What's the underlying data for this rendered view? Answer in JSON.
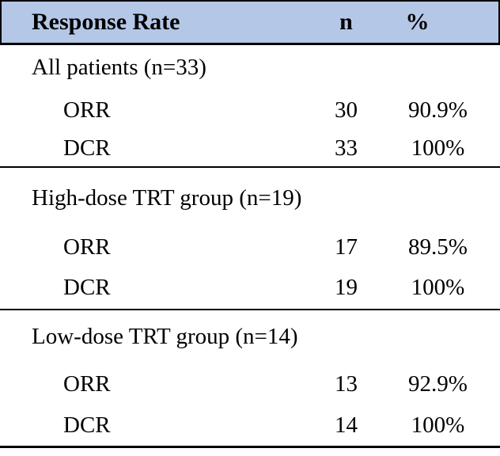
{
  "table": {
    "header": {
      "label": "Response Rate",
      "n": "n",
      "pct": "%"
    },
    "sections": [
      {
        "title": "All patients (n=33)",
        "rows": [
          {
            "label": "ORR",
            "n": "30",
            "pct": "90.9%"
          },
          {
            "label": "DCR",
            "n": "33",
            "pct": "100%"
          }
        ]
      },
      {
        "title": "High-dose TRT group (n=19)",
        "rows": [
          {
            "label": "ORR",
            "n": "17",
            "pct": "89.5%"
          },
          {
            "label": "DCR",
            "n": "19",
            "pct": "100%"
          }
        ]
      },
      {
        "title": "Low-dose TRT group (n=14)",
        "rows": [
          {
            "label": "ORR",
            "n": "13",
            "pct": "92.9%"
          },
          {
            "label": "DCR",
            "n": "14",
            "pct": "100%"
          }
        ]
      }
    ],
    "colors": {
      "header_bg": "#b4c7e7",
      "border": "#000000",
      "text": "#000000"
    }
  },
  "chart_data": {
    "type": "table",
    "title": "Response Rate",
    "columns": [
      "Response Rate",
      "n",
      "%"
    ],
    "rows": [
      [
        "All patients (n=33)",
        "",
        ""
      ],
      [
        "ORR",
        "30",
        "90.9%"
      ],
      [
        "DCR",
        "33",
        "100%"
      ],
      [
        "High-dose TRT group (n=19)",
        "",
        ""
      ],
      [
        "ORR",
        "17",
        "89.5%"
      ],
      [
        "DCR",
        "19",
        "100%"
      ],
      [
        "Low-dose TRT group (n=14)",
        "",
        ""
      ],
      [
        "ORR",
        "13",
        "92.9%"
      ],
      [
        "DCR",
        "14",
        "100%"
      ]
    ]
  }
}
